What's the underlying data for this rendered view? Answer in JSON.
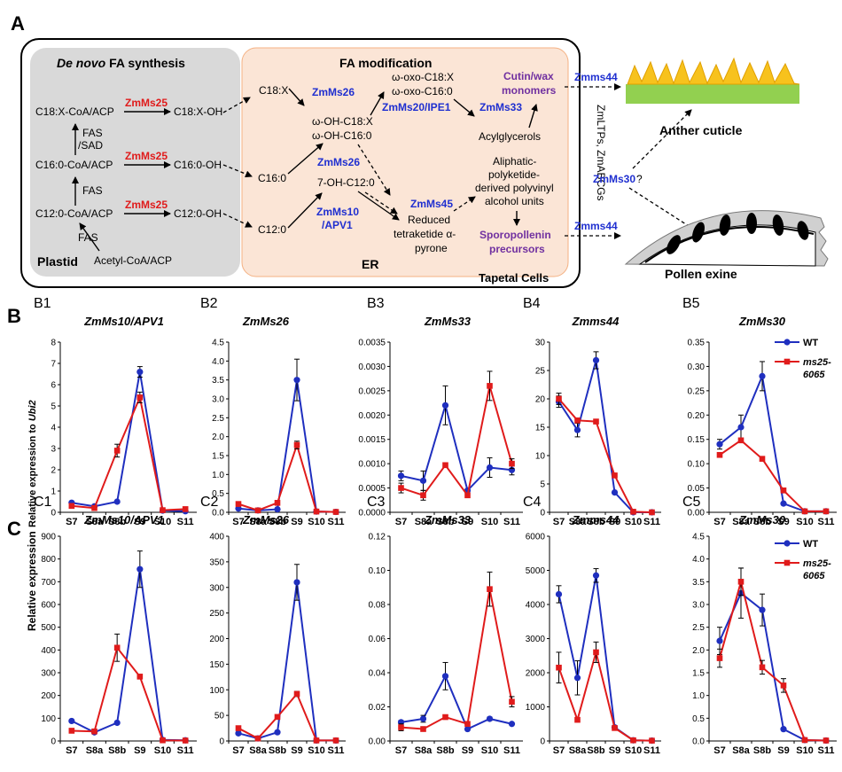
{
  "panel_a": {
    "letter": "A",
    "plastid_box": {
      "title_italic": "De novo",
      "title_rest": " FA synthesis",
      "c18x_cot": "C18:X-CoA/ACP",
      "c18x_oh": "C18:X-OH",
      "c160_cot": "C16:0-CoA/ACP",
      "c160_oh": "C16:0-OH",
      "c120_cot": "C12:0-CoA/ACP",
      "c120_oh": "C12:0-OH",
      "ms25_1": "ZmMs25",
      "ms25_2": "ZmMs25",
      "ms25_3": "ZmMs25",
      "fas_sad_1": "FAS",
      "fas_sad_2": "/SAD",
      "fas_mid": "FAS",
      "fas_bottom": "FAS",
      "acetyl": "Acetyl-CoA/ACP",
      "plastid": "Plastid"
    },
    "er_box": {
      "title": "FA modification",
      "c18x": "C18:X",
      "c160": "C16:0",
      "c120": "C12:0",
      "zmms26_a": "ZmMs26",
      "zmms26_b": "ZmMs26",
      "omega_oh_1": "ω-OH-C18:X",
      "omega_oh_2": "ω-OH-C16:0",
      "omega_oxo_1": "ω-oxo-C18:X",
      "omega_oxo_2": "ω-oxo-C16:0",
      "zmms20": "ZmMs20/IPE1",
      "zmms33": "ZmMs33",
      "cutin_1": "Cutin/wax",
      "cutin_2": "monomers",
      "acylglycerols": "Acylglycerols",
      "aliphatic_1": "Aliphatic-",
      "aliphatic_2": "polyketide-",
      "aliphatic_3": "derived polyvinyl",
      "aliphatic_4": "alcohol units",
      "oh_c12": "7-OH-C12:0",
      "zmms10_1": "ZmMs10",
      "zmms10_2": "/APV1",
      "zmms45": "ZmMs45",
      "reduced_1": "Reduced",
      "reduced_2": "tetraketide α-",
      "reduced_3": "pyrone",
      "sporo_1": "Sporopollenin",
      "sporo_2": "precursors",
      "er": "ER"
    },
    "tapetal_cells": "Tapetal Cells",
    "transporters": "ZmLTPs, ZmABCGs",
    "zmms44_top": "Zmms44",
    "zmms44_bottom": "Zmms44",
    "zmms30": "ZmMs30",
    "zmms30_q": "?",
    "anther_cuticle": "Anther cuticle",
    "pollen_exine": "Pollen exine"
  },
  "panel_b_letter": "B",
  "panel_c_letter": "C",
  "colors": {
    "wt": "#1f2fbf",
    "mut": "#e01b1b",
    "ms25": "#e01b1b",
    "gene": "#1f2fd0",
    "purple": "#7030a0",
    "plastid_bg": "#d9d9d9",
    "er_bg": "#fbe5d6",
    "er_border": "#f4b183"
  },
  "axis_labels": {
    "b_ylabel_pre": "Relative expression to ",
    "b_ylabel_ital": "Ubi2",
    "c_ylabel": "Relative expression"
  },
  "legend": {
    "wt": "WT",
    "mut_1": "ms25-",
    "mut_2": "6065"
  },
  "chart_data": [
    {
      "id": "B1",
      "type": "line",
      "title": "ZmMs10/APV1",
      "categories": [
        "S7",
        "S8a",
        "S8b",
        "S9",
        "S10",
        "S11"
      ],
      "ylim": [
        0,
        8
      ],
      "yticks": [
        "0",
        "1",
        "2",
        "3",
        "4",
        "5",
        "6",
        "7",
        "8"
      ],
      "series": [
        {
          "name": "WT",
          "values": [
            0.45,
            0.28,
            0.5,
            6.6,
            0.08,
            0.05
          ],
          "err": [
            0,
            0,
            0,
            0.25,
            0,
            0
          ]
        },
        {
          "name": "ms25-6065",
          "values": [
            0.3,
            0.2,
            2.9,
            5.4,
            0.1,
            0.15
          ],
          "err": [
            0,
            0,
            0.3,
            0.25,
            0,
            0
          ]
        }
      ]
    },
    {
      "id": "B2",
      "type": "line",
      "title": "ZmMs26",
      "categories": [
        "S7",
        "S8a",
        "S8b",
        "S9",
        "S10",
        "S11"
      ],
      "ylim": [
        0,
        4.5
      ],
      "yticks": [
        "0.0",
        "0.5",
        "1.0",
        "1.5",
        "2.0",
        "2.5",
        "3.0",
        "3.5",
        "4.0",
        "4.5"
      ],
      "series": [
        {
          "name": "WT",
          "values": [
            0.1,
            0.05,
            0.08,
            3.5,
            0.02,
            0.01
          ],
          "err": [
            0,
            0,
            0,
            0.55,
            0,
            0
          ]
        },
        {
          "name": "ms25-6065",
          "values": [
            0.22,
            0.05,
            0.25,
            1.78,
            0.02,
            0.01
          ],
          "err": [
            0,
            0,
            0,
            0.1,
            0,
            0
          ]
        }
      ]
    },
    {
      "id": "B3",
      "type": "line",
      "title": "ZmMs33",
      "categories": [
        "S7",
        "S8a",
        "S8b",
        "S9",
        "S10",
        "S11"
      ],
      "ylim": [
        0,
        0.0035
      ],
      "yticks": [
        "0.0000",
        "0.0005",
        "0.0010",
        "0.0015",
        "0.0020",
        "0.0025",
        "0.0030",
        "0.0035"
      ],
      "series": [
        {
          "name": "WT",
          "values": [
            0.00075,
            0.00065,
            0.0022,
            0.00045,
            0.00092,
            0.00087
          ],
          "err": [
            0.0001,
            0.0002,
            0.0004,
            0,
            0.0002,
            0.0001
          ]
        },
        {
          "name": "ms25-6065",
          "values": [
            0.0005,
            0.00035,
            0.00097,
            0.00035,
            0.0026,
            0.001
          ],
          "err": [
            0.0001,
            0.0001,
            0,
            0,
            0.0003,
            0.0001
          ]
        }
      ]
    },
    {
      "id": "B4",
      "type": "line",
      "title": "Zmms44",
      "categories": [
        "S7",
        "S8a",
        "S8b",
        "S9",
        "S10",
        "S11"
      ],
      "ylim": [
        0,
        30
      ],
      "yticks": [
        "0",
        "5",
        "10",
        "15",
        "20",
        "25",
        "30"
      ],
      "series": [
        {
          "name": "WT",
          "values": [
            19.5,
            14.5,
            26.8,
            3.5,
            0,
            0
          ],
          "err": [
            1.0,
            1.2,
            1.5,
            0,
            0,
            0
          ]
        },
        {
          "name": "ms25-6065",
          "values": [
            20,
            16.2,
            16,
            6.5,
            0.1,
            0
          ],
          "err": [
            1,
            0,
            0,
            0,
            0,
            0
          ]
        }
      ]
    },
    {
      "id": "B5",
      "type": "line",
      "title": "ZmMs30",
      "categories": [
        "S7",
        "S8a",
        "S8b",
        "S9",
        "S10",
        "S11"
      ],
      "ylim": [
        0,
        0.35
      ],
      "yticks": [
        "0.00",
        "0.05",
        "0.10",
        "0.15",
        "0.20",
        "0.25",
        "0.30",
        "0.35"
      ],
      "series": [
        {
          "name": "WT",
          "values": [
            0.14,
            0.175,
            0.28,
            0.018,
            0.002,
            0.002
          ],
          "err": [
            0.01,
            0.025,
            0.03,
            0,
            0,
            0
          ]
        },
        {
          "name": "ms25-6065",
          "values": [
            0.118,
            0.148,
            0.11,
            0.045,
            0.002,
            0.002
          ],
          "err": [
            0.005,
            0,
            0,
            0,
            0,
            0
          ]
        }
      ]
    },
    {
      "id": "C1",
      "type": "line",
      "title": "ZmMs10/APV1",
      "categories": [
        "S7",
        "S8a",
        "S8b",
        "S9",
        "S10",
        "S11"
      ],
      "ylim": [
        0,
        900
      ],
      "yticks": [
        "0",
        "100",
        "200",
        "300",
        "400",
        "500",
        "600",
        "700",
        "800",
        "900"
      ],
      "series": [
        {
          "name": "WT",
          "values": [
            88,
            38,
            80,
            755,
            5,
            3
          ],
          "err": [
            0,
            0,
            0,
            80,
            0,
            0
          ]
        },
        {
          "name": "ms25-6065",
          "values": [
            45,
            42,
            410,
            283,
            3,
            2
          ],
          "err": [
            0,
            0,
            60,
            0,
            0,
            0
          ]
        }
      ]
    },
    {
      "id": "C2",
      "type": "line",
      "title": "ZmMs26",
      "categories": [
        "S7",
        "S8a",
        "S8b",
        "S9",
        "S10",
        "S11"
      ],
      "ylim": [
        0,
        400
      ],
      "yticks": [
        "0",
        "50",
        "100",
        "150",
        "200",
        "250",
        "300",
        "350",
        "400"
      ],
      "series": [
        {
          "name": "WT",
          "values": [
            15,
            5,
            17,
            310,
            1,
            1
          ],
          "err": [
            0,
            0,
            0,
            35,
            0,
            0
          ]
        },
        {
          "name": "ms25-6065",
          "values": [
            25,
            5,
            47,
            92,
            1,
            1
          ],
          "err": [
            0,
            0,
            0,
            5,
            0,
            0
          ]
        }
      ]
    },
    {
      "id": "C3",
      "type": "line",
      "title": "ZmMs33",
      "categories": [
        "S7",
        "S8a",
        "S8b",
        "S9",
        "S10",
        "S11"
      ],
      "ylim": [
        0,
        0.12
      ],
      "yticks": [
        "0.00",
        "0.02",
        "0.04",
        "0.06",
        "0.08",
        "0.10",
        "0.12"
      ],
      "series": [
        {
          "name": "WT",
          "values": [
            0.011,
            0.013,
            0.038,
            0.007,
            0.013,
            0.01
          ],
          "err": [
            0.001,
            0.002,
            0.008,
            0,
            0.001,
            0
          ]
        },
        {
          "name": "ms25-6065",
          "values": [
            0.008,
            0.007,
            0.014,
            0.01,
            0.089,
            0.023
          ],
          "err": [
            0.002,
            0.001,
            0,
            0,
            0.01,
            0.003
          ]
        }
      ]
    },
    {
      "id": "C4",
      "type": "line",
      "title": "Zmms44",
      "categories": [
        "S7",
        "S8a",
        "S8b",
        "S9",
        "S10",
        "S11"
      ],
      "ylim": [
        0,
        6000
      ],
      "yticks": [
        "0",
        "1000",
        "2000",
        "3000",
        "4000",
        "5000",
        "6000"
      ],
      "series": [
        {
          "name": "WT",
          "values": [
            4300,
            1850,
            4850,
            400,
            20,
            10
          ],
          "err": [
            250,
            500,
            200,
            0,
            0,
            0
          ]
        },
        {
          "name": "ms25-6065",
          "values": [
            2150,
            620,
            2600,
            380,
            20,
            10
          ],
          "err": [
            450,
            0,
            300,
            0,
            0,
            0
          ]
        }
      ]
    },
    {
      "id": "C5",
      "type": "line",
      "title": "ZmMs30",
      "categories": [
        "S7",
        "S8a",
        "S8b",
        "S9",
        "S10",
        "S11"
      ],
      "ylim": [
        0,
        4.5
      ],
      "yticks": [
        "0.0",
        "0.5",
        "1.0",
        "1.5",
        "2.0",
        "2.5",
        "3.0",
        "3.5",
        "4.0",
        "4.5"
      ],
      "series": [
        {
          "name": "WT",
          "values": [
            2.2,
            3.25,
            2.88,
            0.26,
            0.02,
            0.01
          ],
          "err": [
            0.3,
            0.55,
            0.35,
            0,
            0,
            0
          ]
        },
        {
          "name": "ms25-6065",
          "values": [
            1.82,
            3.5,
            1.62,
            1.22,
            0.02,
            0.01
          ],
          "err": [
            0.2,
            0.3,
            0.15,
            0.15,
            0,
            0
          ]
        }
      ]
    }
  ]
}
